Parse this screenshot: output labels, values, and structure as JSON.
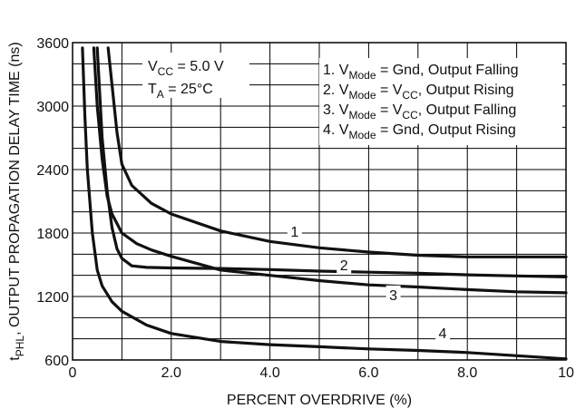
{
  "chart_data": {
    "type": "line",
    "title": "",
    "xlabel": "PERCENT OVERDRIVE (%)",
    "ylabel": {
      "prefix": "t",
      "sub": "PHL",
      "rest": ", OUTPUT PROPAGATION DELAY TIME (ns)"
    },
    "xlim": [
      0,
      10
    ],
    "ylim": [
      600,
      3600
    ],
    "x_ticks": [
      "0",
      "2.0",
      "4.0",
      "6.0",
      "8.0",
      "10"
    ],
    "y_ticks": [
      "600",
      "1200",
      "1800",
      "2400",
      "3000",
      "3600"
    ],
    "grid": true,
    "conditions": {
      "vcc": {
        "main": "V",
        "sub": "CC",
        "rest": " = 5.0 V"
      },
      "ta": {
        "main": "T",
        "sub": "A",
        "rest": " = 25°C"
      }
    },
    "legend": {
      "placement": "top-right",
      "entries": [
        {
          "num": "1. V",
          "sub1": "Mode",
          "mid": " = Gnd, Output Falling",
          "sub2": "",
          "end": ""
        },
        {
          "num": "2. V",
          "sub1": "Mode",
          "mid": " = V",
          "sub2": "CC",
          "end": ", Output Rising"
        },
        {
          "num": "3. V",
          "sub1": "Mode",
          "mid": " = V",
          "sub2": "CC",
          "end": ", Output Falling"
        },
        {
          "num": "4. V",
          "sub1": "Mode",
          "mid": " = Gnd, Output Rising",
          "sub2": "",
          "end": ""
        }
      ]
    },
    "series": [
      {
        "label": "1",
        "values": [
          [
            0.72,
            3550
          ],
          [
            0.8,
            3200
          ],
          [
            0.9,
            2750
          ],
          [
            1.0,
            2450
          ],
          [
            1.2,
            2250
          ],
          [
            1.6,
            2080
          ],
          [
            2.0,
            1980
          ],
          [
            3.0,
            1820
          ],
          [
            4.0,
            1720
          ],
          [
            5.0,
            1660
          ],
          [
            6.0,
            1620
          ],
          [
            7.0,
            1590
          ],
          [
            8.0,
            1575
          ],
          [
            9.0,
            1575
          ],
          [
            10.0,
            1575
          ]
        ]
      },
      {
        "label": "2",
        "values": [
          [
            0.5,
            3550
          ],
          [
            0.6,
            2700
          ],
          [
            0.7,
            2200
          ],
          [
            0.8,
            1850
          ],
          [
            0.9,
            1650
          ],
          [
            1.0,
            1560
          ],
          [
            1.2,
            1490
          ],
          [
            1.5,
            1475
          ],
          [
            2.0,
            1470
          ],
          [
            3.0,
            1465
          ],
          [
            4.0,
            1455
          ],
          [
            5.0,
            1440
          ],
          [
            6.0,
            1430
          ],
          [
            7.0,
            1420
          ],
          [
            8.0,
            1405
          ],
          [
            9.0,
            1395
          ],
          [
            10.0,
            1385
          ]
        ]
      },
      {
        "label": "3",
        "values": [
          [
            0.43,
            3550
          ],
          [
            0.5,
            3000
          ],
          [
            0.6,
            2500
          ],
          [
            0.7,
            2150
          ],
          [
            0.8,
            1980
          ],
          [
            1.0,
            1800
          ],
          [
            1.3,
            1700
          ],
          [
            1.6,
            1640
          ],
          [
            2.0,
            1580
          ],
          [
            3.0,
            1450
          ],
          [
            4.0,
            1400
          ],
          [
            5.0,
            1350
          ],
          [
            6.0,
            1310
          ],
          [
            7.0,
            1290
          ],
          [
            8.0,
            1265
          ],
          [
            9.0,
            1245
          ],
          [
            10.0,
            1235
          ]
        ]
      },
      {
        "label": "4",
        "values": [
          [
            0.2,
            3550
          ],
          [
            0.25,
            2900
          ],
          [
            0.3,
            2400
          ],
          [
            0.4,
            1800
          ],
          [
            0.5,
            1450
          ],
          [
            0.6,
            1300
          ],
          [
            0.8,
            1150
          ],
          [
            1.0,
            1060
          ],
          [
            1.5,
            930
          ],
          [
            2.0,
            850
          ],
          [
            3.0,
            775
          ],
          [
            4.0,
            745
          ],
          [
            5.0,
            725
          ],
          [
            6.0,
            705
          ],
          [
            7.0,
            690
          ],
          [
            8.0,
            670
          ],
          [
            9.0,
            640
          ],
          [
            10.0,
            610
          ]
        ]
      }
    ],
    "curve_labels": [
      {
        "text": "1",
        "x": 4.5,
        "y": 1810
      },
      {
        "text": "2",
        "x": 5.5,
        "y": 1490
      },
      {
        "text": "3",
        "x": 6.5,
        "y": 1210
      },
      {
        "text": "4",
        "x": 7.5,
        "y": 850
      }
    ]
  }
}
